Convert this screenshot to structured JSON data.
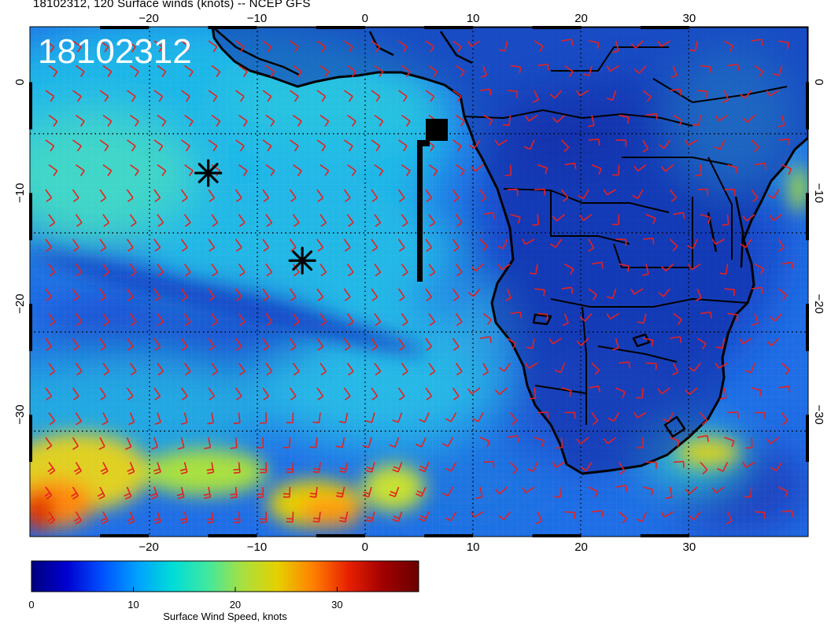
{
  "header": {
    "title": "18102312, 120 Surface winds (knots) -- NCEP GFS"
  },
  "map": {
    "date_stamp": "18102312",
    "lon_range": [
      -31,
      41
    ],
    "lat_range": [
      5,
      -41
    ],
    "lon_ticks": [
      {
        "value": -20,
        "label": "−20"
      },
      {
        "value": -10,
        "label": "−10"
      },
      {
        "value": 0,
        "label": "0"
      },
      {
        "value": 10,
        "label": "10"
      },
      {
        "value": 20,
        "label": "20"
      },
      {
        "value": 30,
        "label": "30"
      }
    ],
    "lat_ticks": [
      {
        "value": 0,
        "label": "0"
      },
      {
        "value": -10,
        "label": "−10"
      },
      {
        "value": -20,
        "label": "−20"
      },
      {
        "value": -30,
        "label": "−30"
      }
    ],
    "markers": [
      {
        "name": "storm-marker-1",
        "lon": -14.5,
        "lat": -8.2,
        "type": "asterisk"
      },
      {
        "name": "storm-marker-2",
        "lon": -5.8,
        "lat": -16.1,
        "type": "asterisk"
      }
    ],
    "barb_color": "#e8201c",
    "coast_color": "#000000"
  },
  "colorbar": {
    "label": "Surface Wind Speed, knots",
    "min": 0,
    "max": 38,
    "ticks": [
      {
        "value": 0,
        "label": "0"
      },
      {
        "value": 10,
        "label": "10"
      },
      {
        "value": 20,
        "label": "20"
      },
      {
        "value": 30,
        "label": "30"
      }
    ],
    "colors": [
      "#00007f",
      "#0000d0",
      "#0050ff",
      "#00a0ff",
      "#00dcd8",
      "#40e8a0",
      "#a8e040",
      "#e6d000",
      "#ff8000",
      "#e82000",
      "#a00000",
      "#6a0000"
    ]
  }
}
